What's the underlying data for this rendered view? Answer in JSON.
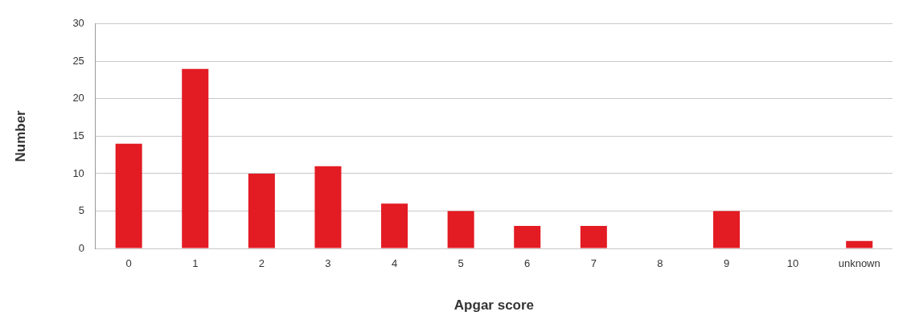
{
  "chart_data": {
    "type": "bar",
    "xlabel": "Apgar score",
    "ylabel": "Number",
    "categories": [
      "0",
      "1",
      "2",
      "3",
      "4",
      "5",
      "6",
      "7",
      "8",
      "9",
      "10",
      "unknown"
    ],
    "values": [
      14,
      24,
      10,
      11,
      6,
      5,
      3,
      3,
      0,
      5,
      0,
      1
    ],
    "color": "#e31b23",
    "ylim": [
      0,
      30
    ],
    "yticks": [
      0,
      5,
      10,
      15,
      20,
      25,
      30
    ],
    "grid": "y"
  }
}
